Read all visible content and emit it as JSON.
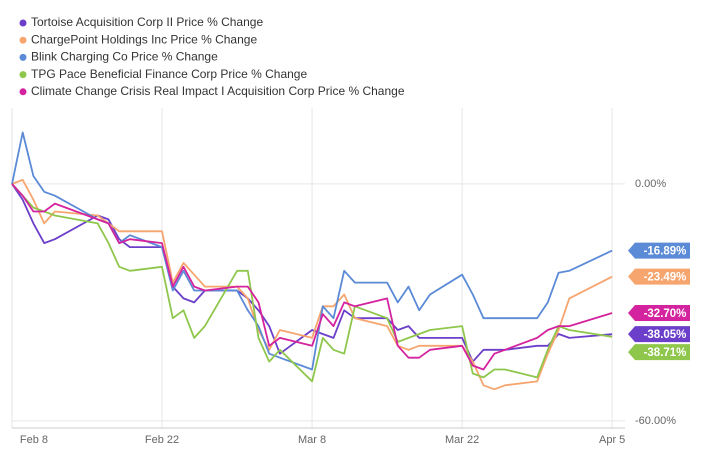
{
  "chart_data": {
    "type": "line",
    "x": [
      0,
      1,
      2,
      3,
      4,
      8,
      9,
      10,
      11,
      14,
      15,
      16,
      17,
      18,
      21,
      22,
      23,
      24,
      25,
      28,
      29,
      30,
      31,
      32,
      35,
      36,
      37,
      38,
      39,
      42,
      43,
      44,
      45,
      46,
      49,
      50,
      51,
      52,
      56
    ],
    "xlim": [
      0,
      57.2
    ],
    "xticks": [
      {
        "value": 0,
        "label": "Feb 8"
      },
      {
        "value": 14,
        "label": "Feb 22"
      },
      {
        "value": 28,
        "label": "Mar 8"
      },
      {
        "value": 42,
        "label": "Mar 22"
      },
      {
        "value": 56,
        "label": "Apr 5"
      }
    ],
    "ylim": [
      -61.8,
      19.2
    ],
    "yticks": [
      {
        "value": 0,
        "label": "0.00%"
      },
      {
        "value": -60,
        "label": "-60.00%"
      }
    ],
    "grid": true,
    "series": [
      {
        "name": "Tortoise Acquisition Corp II Price % Change",
        "color": "#6b3fc9",
        "last_label": "-38.05%",
        "values": [
          0,
          -4,
          -10,
          -15,
          -14,
          -8,
          -9,
          -14,
          -16,
          -16,
          -26,
          -29,
          -30,
          -27,
          -27,
          -29,
          -32,
          -36,
          -43,
          -37,
          -38,
          -39,
          -32,
          -34,
          -34,
          -37,
          -36,
          -39,
          -39,
          -39,
          -45,
          -42,
          -42,
          -42,
          -41,
          -41,
          -38,
          -39,
          -38.05
        ]
      },
      {
        "name": "ChargePoint Holdings Inc Price % Change",
        "color": "#f6a56e",
        "last_label": "-23.49%",
        "values": [
          0,
          1,
          -4,
          -10,
          -7,
          -8,
          -10,
          -12,
          -12,
          -12,
          -25,
          -20,
          -23,
          -26,
          -26,
          -29,
          -37,
          -42,
          -37,
          -39,
          -31,
          -31,
          -28,
          -34,
          -36,
          -41,
          -42,
          -41,
          -41,
          -41,
          -45,
          -51,
          -52,
          -51,
          -50,
          -43,
          -37,
          -29,
          -23.49
        ]
      },
      {
        "name": "Blink Charging Co Price % Change",
        "color": "#5b8ad6",
        "last_label": "-16.89%",
        "values": [
          0,
          13,
          2,
          -2,
          -3,
          -9,
          -10,
          -15,
          -13,
          -16,
          -27,
          -22,
          -27,
          -27,
          -27,
          -32,
          -36,
          -43,
          -44,
          -47,
          -31,
          -34,
          -22,
          -25,
          -25,
          -30,
          -26,
          -32,
          -28,
          -23,
          -28,
          -34,
          -34,
          -34,
          -34,
          -30,
          -22.5,
          -22,
          -16.89
        ]
      },
      {
        "name": "TPG Pace Beneficial Finance Corp Price % Change",
        "color": "#8fc74c",
        "last_label": "-38.71%",
        "values": [
          0,
          -3,
          -6,
          -7,
          -8,
          -10,
          -15,
          -21,
          -22,
          -21,
          -34,
          -32,
          -39,
          -36,
          -22,
          -22,
          -39,
          -45,
          -42,
          -50,
          -39,
          -42,
          -43,
          -31,
          -34,
          -40,
          -39,
          -38,
          -37,
          -36,
          -48,
          -49,
          -47,
          -47,
          -49,
          -42,
          -36,
          -37,
          -38.71
        ]
      },
      {
        "name": "Climate Change Crisis Real Impact I Acquisition Corp Price % Change",
        "color": "#d4239e",
        "last_label": "-32.70%",
        "values": [
          0,
          -3,
          -7,
          -7,
          -5,
          -9,
          -10,
          -15,
          -14,
          -15,
          -26,
          -21,
          -26,
          -27,
          -26,
          -26,
          -30,
          -41,
          -39,
          -41,
          -33,
          -36,
          -30,
          -31,
          -29,
          -41,
          -44,
          -44,
          -42,
          -41,
          -46,
          -47,
          -43,
          -42,
          -39,
          -37,
          -36,
          -36,
          -32.7
        ]
      }
    ]
  }
}
